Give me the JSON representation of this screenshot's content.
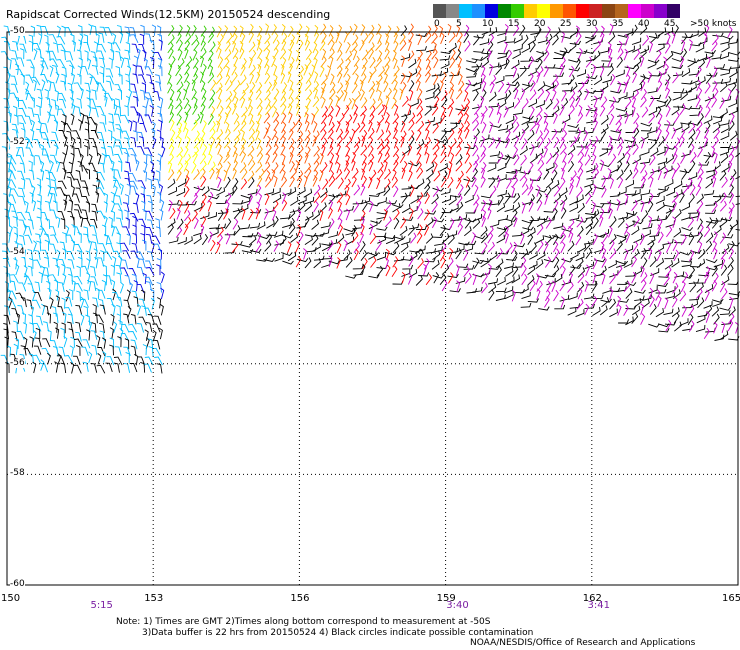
{
  "title": "Rapidscat Corrected Winds(12.5KM) 20150524 descending",
  "legend": {
    "colors": [
      "#555555",
      "#888888",
      "#00bfff",
      "#1e90ff",
      "#0000e0",
      "#008800",
      "#33cc00",
      "#ffcc00",
      "#ffff00",
      "#ff9900",
      "#ff5500",
      "#ff0000",
      "#cc2222",
      "#8b4513",
      "#b5651d",
      "#ff00ff",
      "#cc00cc",
      "#8800cc",
      "#330066"
    ],
    "labels": [
      "0",
      "5",
      "10",
      "15",
      "20",
      "25",
      "30",
      "35",
      "40",
      "45",
      ">50 knots"
    ]
  },
  "axes": {
    "x_ticks": [
      "150",
      "153",
      "156",
      "159",
      "162",
      "165"
    ],
    "y_ticks": [
      "-50",
      "-52",
      "-54",
      "-56",
      "-58",
      "-60"
    ],
    "x_range": [
      150,
      165
    ],
    "y_range": [
      -50,
      -60
    ]
  },
  "times": [
    {
      "label": "5:15",
      "lon": 152
    },
    {
      "label": "3:40",
      "lon": 159.3
    },
    {
      "label": "3:41",
      "lon": 162.2
    }
  ],
  "notes": [
    "Note: 1) Times are GMT 2)Times along bottom correspond to measurement at -50S",
    "3)Data buffer is 22 hrs from 20150524 4) Black circles indicate possible contamination"
  ],
  "credit": "NOAA/NESDIS/Office of Research and Applications"
}
